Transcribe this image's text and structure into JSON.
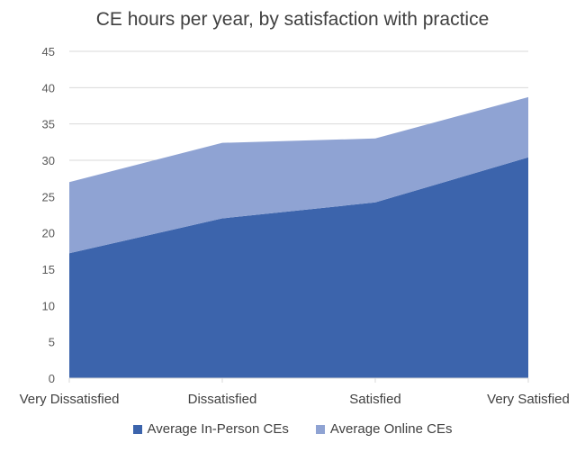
{
  "chart_data": {
    "type": "area",
    "stacked": true,
    "title": "CE hours per year, by satisfaction with practice",
    "xlabel": "",
    "ylabel": "",
    "categories": [
      "Very Dissatisfied",
      "Dissatisfied",
      "Satisfied",
      "Very Satisfied"
    ],
    "series": [
      {
        "name": "Average In-Person CEs",
        "values": [
          17.2,
          22.0,
          24.2,
          30.4
        ],
        "color": "#3C64AC"
      },
      {
        "name": "Average Online CEs",
        "values": [
          9.8,
          10.4,
          8.8,
          8.3
        ],
        "color": "#8FA3D3"
      }
    ],
    "ylim": [
      0,
      45
    ],
    "yticks": [
      0,
      5,
      10,
      15,
      20,
      25,
      30,
      35,
      40,
      45
    ],
    "grid": true,
    "legend_position": "bottom"
  }
}
